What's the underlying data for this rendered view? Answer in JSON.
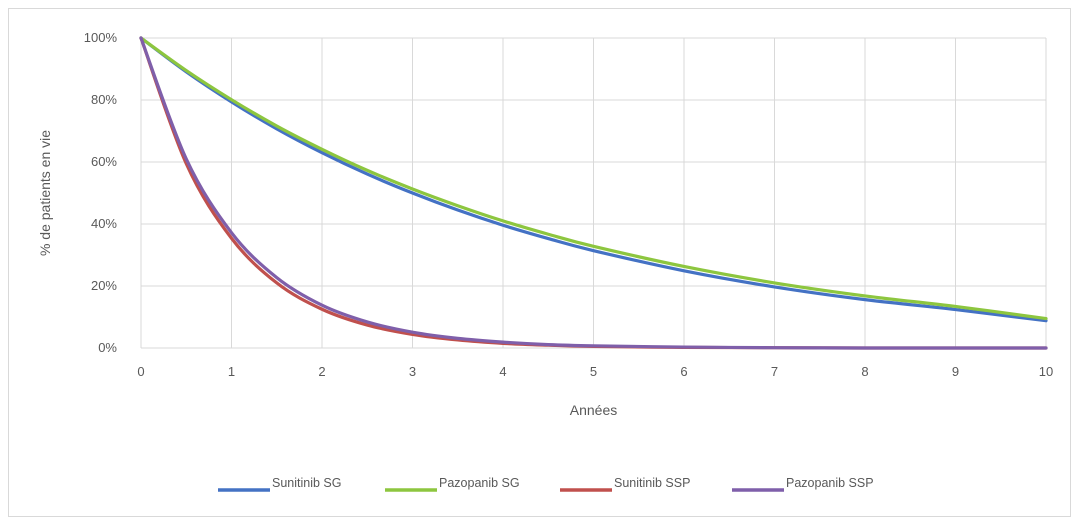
{
  "chart_data": {
    "type": "line",
    "title": "",
    "xlabel": "Années",
    "ylabel": "% de patients en vie",
    "xlim": [
      0,
      10
    ],
    "ylim": [
      0,
      100
    ],
    "x_ticks": [
      "0",
      "1",
      "2",
      "3",
      "4",
      "5",
      "6",
      "7",
      "8",
      "9",
      "10"
    ],
    "y_ticks": [
      "0%",
      "20%",
      "40%",
      "60%",
      "80%",
      "100%"
    ],
    "grid": "vertical and horizontal major gridlines",
    "legend_position": "bottom",
    "x": [
      0,
      0.5,
      1,
      1.5,
      2,
      2.5,
      3,
      3.5,
      4,
      4.5,
      5,
      6,
      7,
      8,
      9,
      10
    ],
    "series": [
      {
        "name": "Sunitinib SG",
        "color": "#4472C4",
        "values": [
          100,
          89.1,
          79.4,
          70.7,
          63.0,
          56.1,
          50.0,
          44.5,
          39.6,
          35.3,
          31.4,
          24.9,
          19.7,
          15.6,
          12.4,
          8.8
        ]
      },
      {
        "name": "Pazopanib SG",
        "color": "#8DC63F",
        "values": [
          100,
          89.5,
          80.1,
          71.6,
          64.1,
          57.3,
          51.3,
          45.9,
          41.0,
          36.7,
          32.8,
          26.3,
          21.0,
          16.8,
          13.4,
          9.5
        ]
      },
      {
        "name": "Sunitinib SSP",
        "color": "#C0504D",
        "values": [
          100,
          59.5,
          35.4,
          21.0,
          12.5,
          7.4,
          4.4,
          2.6,
          1.5,
          0.9,
          0.5,
          0.2,
          0.1,
          0.0,
          0.0,
          0.0
        ]
      },
      {
        "name": "Pazopanib SSP",
        "color": "#7F5FAA",
        "values": [
          100,
          61.0,
          37.2,
          22.7,
          13.8,
          8.4,
          5.1,
          3.1,
          1.9,
          1.1,
          0.7,
          0.3,
          0.1,
          0.0,
          0.0,
          0.0
        ]
      }
    ]
  }
}
